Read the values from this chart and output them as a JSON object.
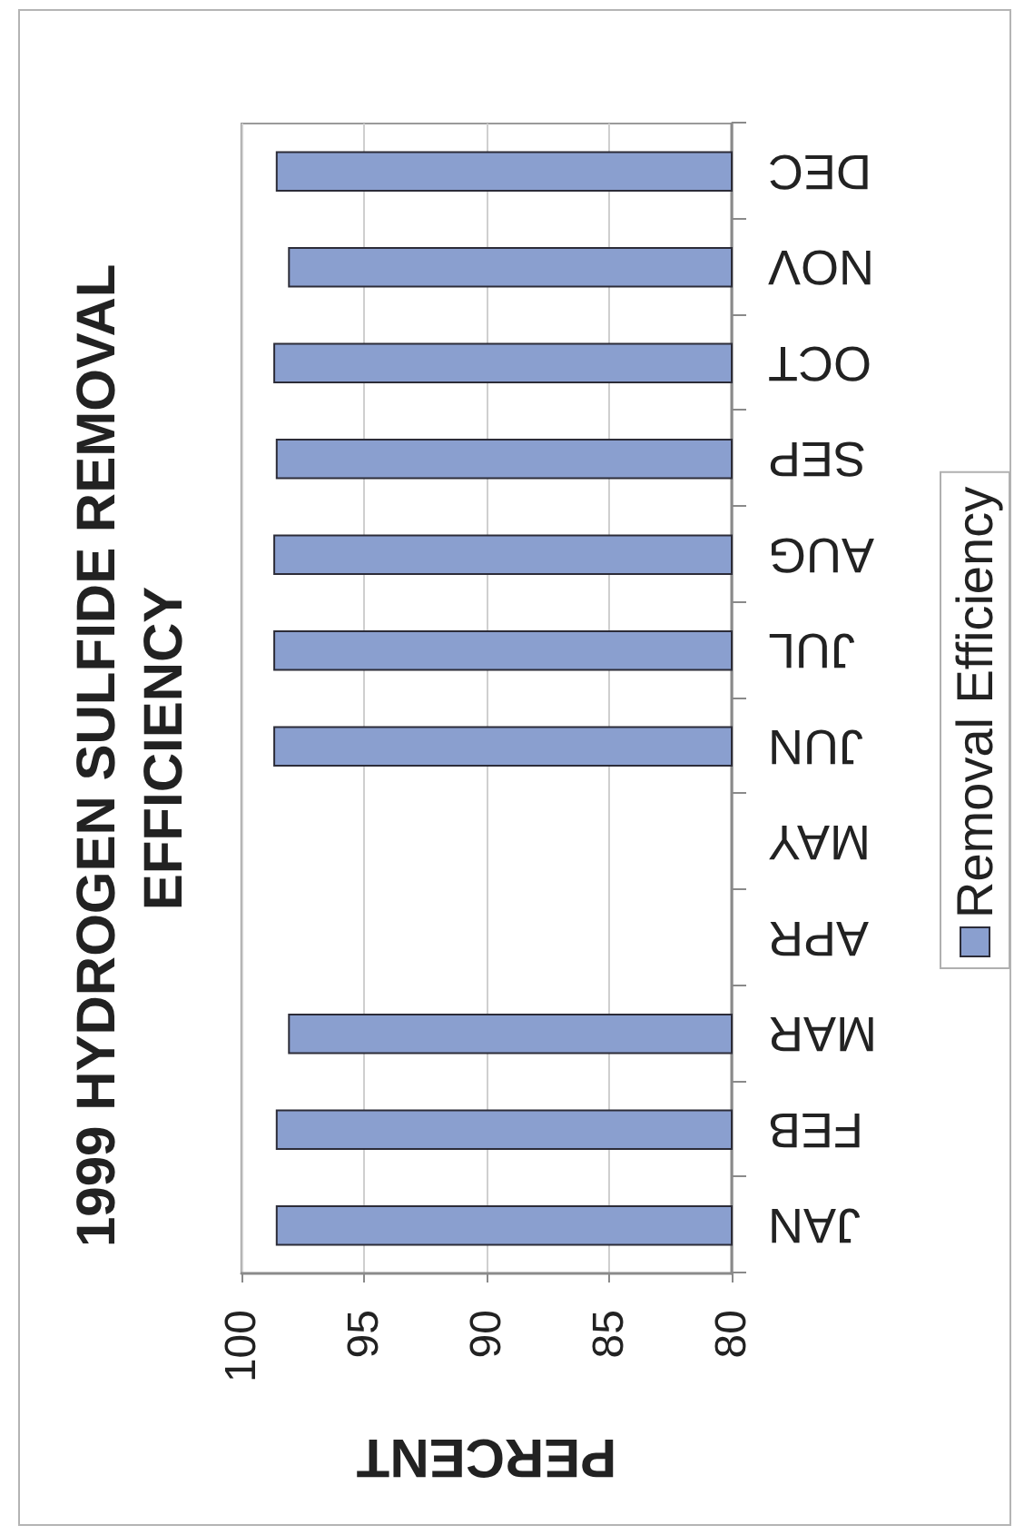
{
  "chart_data": {
    "type": "bar",
    "orientation": "horizontal",
    "title": "1999 HYDROGEN SULFIDE REMOVAL EFFICIENCY",
    "xlabel": "PERCENT",
    "categories": [
      "DEC",
      "NOV",
      "OCT",
      "SEP",
      "AUG",
      "JUL",
      "JUN",
      "MAY",
      "APR",
      "MAR",
      "FEB",
      "JAN"
    ],
    "series": [
      {
        "name": "Removal Efficiency",
        "color": "#8a9fcf",
        "values": [
          98.6,
          98.1,
          98.7,
          98.6,
          98.7,
          98.7,
          98.7,
          null,
          null,
          98.1,
          98.6,
          98.6
        ]
      }
    ],
    "xlim": [
      100,
      80
    ],
    "xticks": [
      100,
      95,
      90,
      85,
      80
    ],
    "grid": "x",
    "legend": "right"
  }
}
